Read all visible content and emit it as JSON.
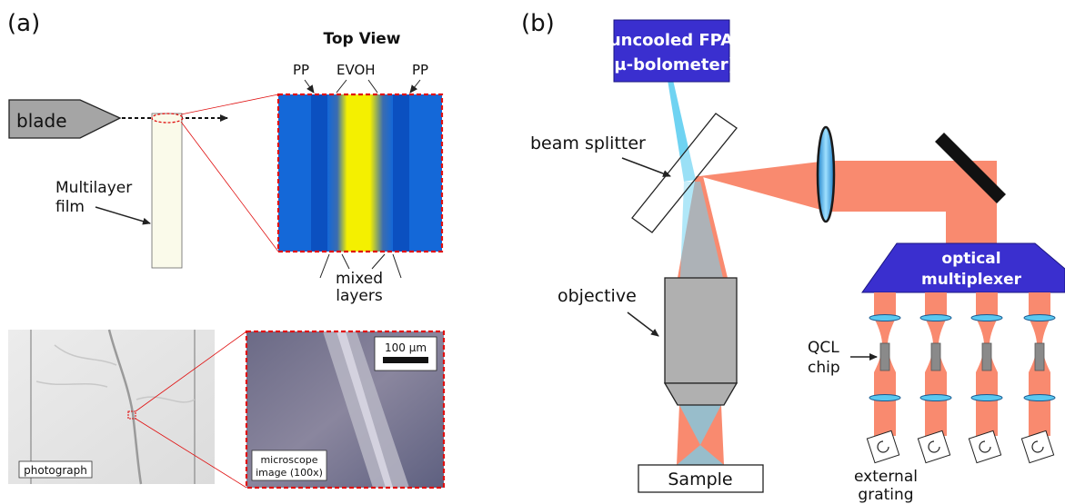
{
  "panel_a": {
    "label": "(a)",
    "top_view_title": "Top View",
    "blade_label": "blade",
    "film_label_line1": "Multilayer",
    "film_label_line2": "film",
    "layer_left": "PP",
    "layer_center": "EVOH",
    "layer_right": "PP",
    "mixed_line1": "mixed",
    "mixed_line2": "layers",
    "photo_label": "photograph",
    "micro_label_line1": "microscope",
    "micro_label_line2": "image (100x)",
    "scalebar_label": "100 µm"
  },
  "panel_b": {
    "label": "(b)",
    "fpa_line1": "uncooled FPA",
    "fpa_line2": "(µ-bolometer)",
    "beam_splitter_label": "beam splitter",
    "objective_label": "objective",
    "sample_label": "Sample",
    "mux_line1": "optical",
    "mux_line2": "multiplexer",
    "qcl_line1": "QCL",
    "qcl_line2": "chip",
    "grating_line1": "external",
    "grating_line2": "grating"
  },
  "colors": {
    "beam_red": "#F98A6F",
    "beam_blue": "#6FD3F2",
    "fpa_blue": "#3A2FCF",
    "layer_blue": "#1060D8",
    "layer_yellow": "#F4F000",
    "dashed_red": "#E01010"
  }
}
